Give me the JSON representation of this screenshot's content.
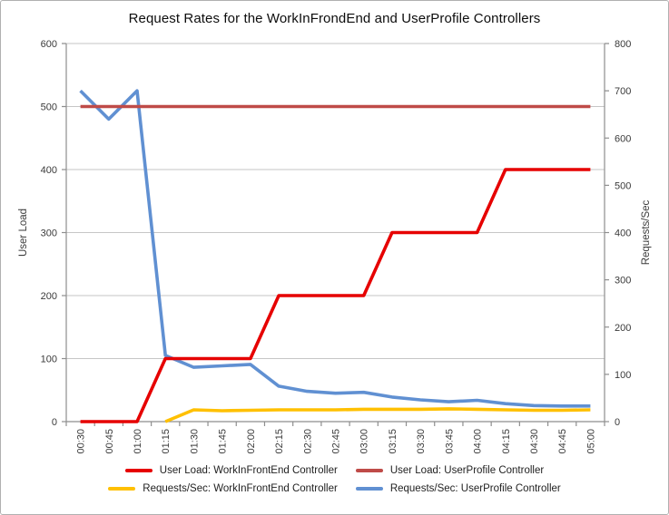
{
  "chart_data": {
    "type": "line",
    "title": "Request Rates for the WorkInFrondEnd and UserProfile Controllers",
    "categories": [
      "00:30",
      "00:45",
      "01:00",
      "01:15",
      "01:30",
      "01:45",
      "02:00",
      "02:15",
      "02:30",
      "02:45",
      "03:00",
      "03:15",
      "03:30",
      "03:45",
      "04:00",
      "04:15",
      "04:30",
      "04:45",
      "05:00"
    ],
    "left_axis": {
      "label": "User Load",
      "min": 0,
      "max": 600,
      "tick_interval": 100,
      "tick_labels": [
        "0",
        "100",
        "200",
        "300",
        "400",
        "500",
        "600"
      ]
    },
    "right_axis": {
      "label": "Requests/Sec",
      "min": 0,
      "max": 800,
      "tick_interval": 100,
      "tick_labels": [
        "0",
        "100",
        "200",
        "300",
        "400",
        "500",
        "600",
        "700",
        "800"
      ]
    },
    "grid": "horizontal",
    "legend_position": "bottom",
    "colors": {
      "grid": "#c6c6c6",
      "axis": "#8e8e8e",
      "tick_text": "#3a3a3a",
      "title_text": "#0d0d0d"
    },
    "series": [
      {
        "name": "User Load: WorkInFrontEnd Controller",
        "axis": "left",
        "color": "#e60000",
        "values": [
          0,
          0,
          0,
          100,
          100,
          100,
          100,
          200,
          200,
          200,
          200,
          300,
          300,
          300,
          300,
          400,
          400,
          400,
          400
        ]
      },
      {
        "name": "User Load: UserProfile Controller",
        "axis": "left",
        "color": "#bf4b48",
        "values": [
          500,
          500,
          500,
          500,
          500,
          500,
          500,
          500,
          500,
          500,
          500,
          500,
          500,
          500,
          500,
          500,
          500,
          500,
          500
        ]
      },
      {
        "name": "Requests/Sec: WorkInFrontEnd Controller",
        "axis": "right",
        "color": "#ffc000",
        "values": [
          null,
          null,
          null,
          0,
          25,
          23,
          24,
          25,
          25,
          25,
          26,
          26,
          26,
          27,
          26,
          25,
          24,
          24,
          25
        ]
      },
      {
        "name": "Requests/Sec: UserProfile Controller",
        "axis": "right",
        "color": "#6090d2",
        "values": [
          700,
          640,
          700,
          140,
          115,
          118,
          121,
          75,
          64,
          60,
          62,
          52,
          46,
          42,
          45,
          38,
          34,
          33,
          33
        ]
      }
    ]
  }
}
